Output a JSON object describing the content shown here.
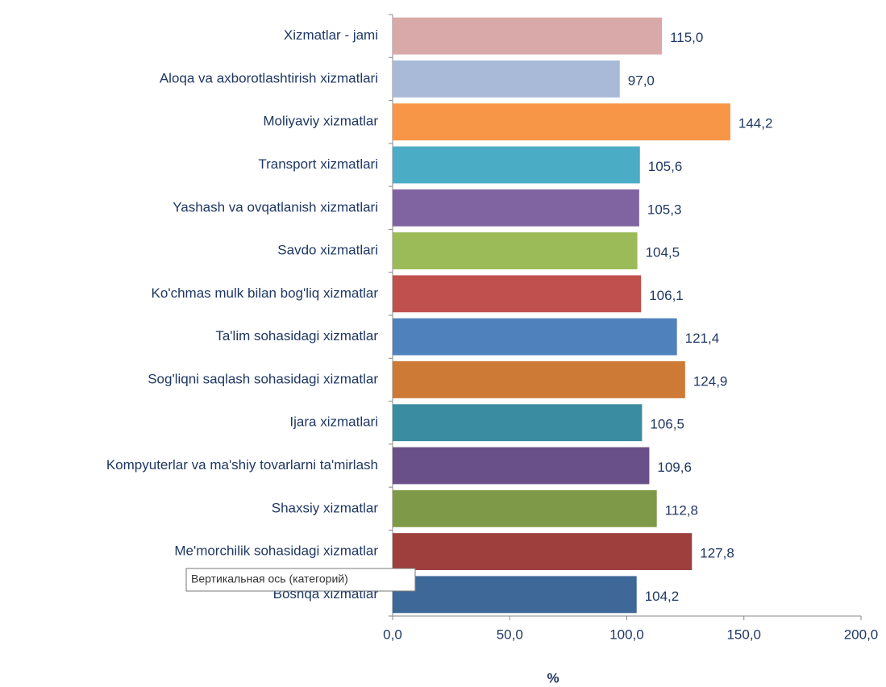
{
  "chart_data": {
    "type": "bar",
    "orientation": "horizontal",
    "categories": [
      "Xizmatlar - jami",
      "Aloqa va axborotlashtirish  xizmatlari",
      "Moliyaviy xizmatlar",
      "Transport xizmatlari",
      "Yashash va ovqatlanish xizmatlari",
      "Savdo xizmatlari",
      "Ko'chmas mulk bilan bog'liq xizmatlar",
      "Ta'lim sohasidagi  xizmatlar",
      "Sog'liqni saqlash  sohasidagi  xizmatlar",
      "Ijara xizmatlari",
      "Kompyuterlar va ma'shiy tovarlarni ta'mirlash",
      "Shaxsiy xizmatlar",
      "Me'morchilik  sohasidagi xizmatlar",
      "Boshqa xizmatlar"
    ],
    "values": [
      115.0,
      97.0,
      144.2,
      105.6,
      105.3,
      104.5,
      106.1,
      121.4,
      124.9,
      106.5,
      109.6,
      112.8,
      127.8,
      104.2
    ],
    "value_labels": [
      "115,0",
      "97,0",
      "144,2",
      "105,6",
      "105,3",
      "104,5",
      "106,1",
      "121,4",
      "124,9",
      "106,5",
      "109,6",
      "112,8",
      "127,8",
      "104,2"
    ],
    "colors": [
      "#d9a8a8",
      "#a9bad9",
      "#f79646",
      "#4bacc6",
      "#8064a2",
      "#9bbb59",
      "#c0504d",
      "#4f81bd",
      "#cc7a35",
      "#3a8ca0",
      "#6a5089",
      "#7e9a48",
      "#9e3f3d",
      "#3d6898"
    ],
    "xlim": [
      0,
      200
    ],
    "xticks": [
      {
        "value": 0,
        "label": "0,0"
      },
      {
        "value": 50,
        "label": "50,0"
      },
      {
        "value": 100,
        "label": "100,0"
      },
      {
        "value": 150,
        "label": "150,0"
      },
      {
        "value": 200,
        "label": "200,0"
      }
    ],
    "x_label": "%",
    "tooltip": "Вертикальная ось (категорий)"
  }
}
